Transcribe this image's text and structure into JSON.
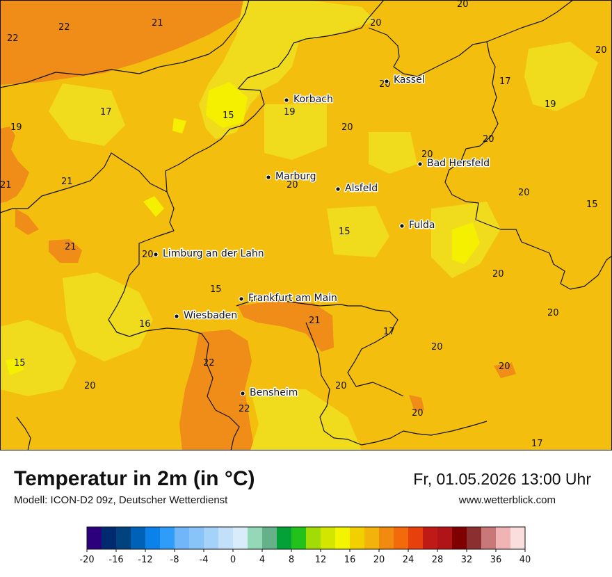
{
  "header": {
    "title": "Temperatur in 2m (in °C)",
    "subtitle": "Modell: ICON-D2 09z, Deutscher Wetterdienst",
    "datetime": "Fr, 01.05.2026 13:00 Uhr",
    "website": "www.wetterblick.com"
  },
  "colors": {
    "field_base": "#f3be0e",
    "field_warm": "#f08c18",
    "field_cool": "#f5e10a",
    "field_light": "#f0dc1c",
    "field_lime": "#f5f500",
    "border": "#111111"
  },
  "cities": [
    {
      "name": "Kassel"
    },
    {
      "name": "Korbach"
    },
    {
      "name": "Bad Hersfeld"
    },
    {
      "name": "Marburg"
    },
    {
      "name": "Alsfeld"
    },
    {
      "name": "Fulda"
    },
    {
      "name": "Limburg an der Lahn"
    },
    {
      "name": "Frankfurt am Main"
    },
    {
      "name": "Wiesbaden"
    },
    {
      "name": "Bensheim"
    }
  ],
  "values": [
    "20",
    "20",
    "22",
    "22",
    "21",
    "20",
    "17",
    "19",
    "19",
    "15",
    "17",
    "19",
    "20",
    "20",
    "20",
    "21",
    "21",
    "20",
    "20",
    "15",
    "15",
    "21",
    "20",
    "20",
    "15",
    "20",
    "20",
    "16",
    "21",
    "17",
    "15",
    "22",
    "20",
    "20",
    "20",
    "22",
    "20",
    "17"
  ],
  "legend": {
    "colors": [
      "#2c007c",
      "#002a70",
      "#00427e",
      "#0062b6",
      "#0a82ea",
      "#2e9cf8",
      "#70b6f8",
      "#88c4f8",
      "#a4d2f8",
      "#c2e0fa",
      "#d8ecfa",
      "#94d8b8",
      "#66b08a",
      "#04a038",
      "#22c21a",
      "#a2dc06",
      "#d2e600",
      "#f2f400",
      "#f2d000",
      "#f2b40a",
      "#f28a10",
      "#f26a0c",
      "#e8400c",
      "#c01a16",
      "#b01418",
      "#7e0000",
      "#8a3030",
      "#c87878",
      "#f0b4b4",
      "#fadede"
    ],
    "ticks": [
      "-20",
      "-16",
      "-12",
      "-8",
      "-4",
      "0",
      "4",
      "8",
      "12",
      "16",
      "20",
      "24",
      "28",
      "32",
      "36",
      "40"
    ],
    "min": -20,
    "max": 40
  }
}
